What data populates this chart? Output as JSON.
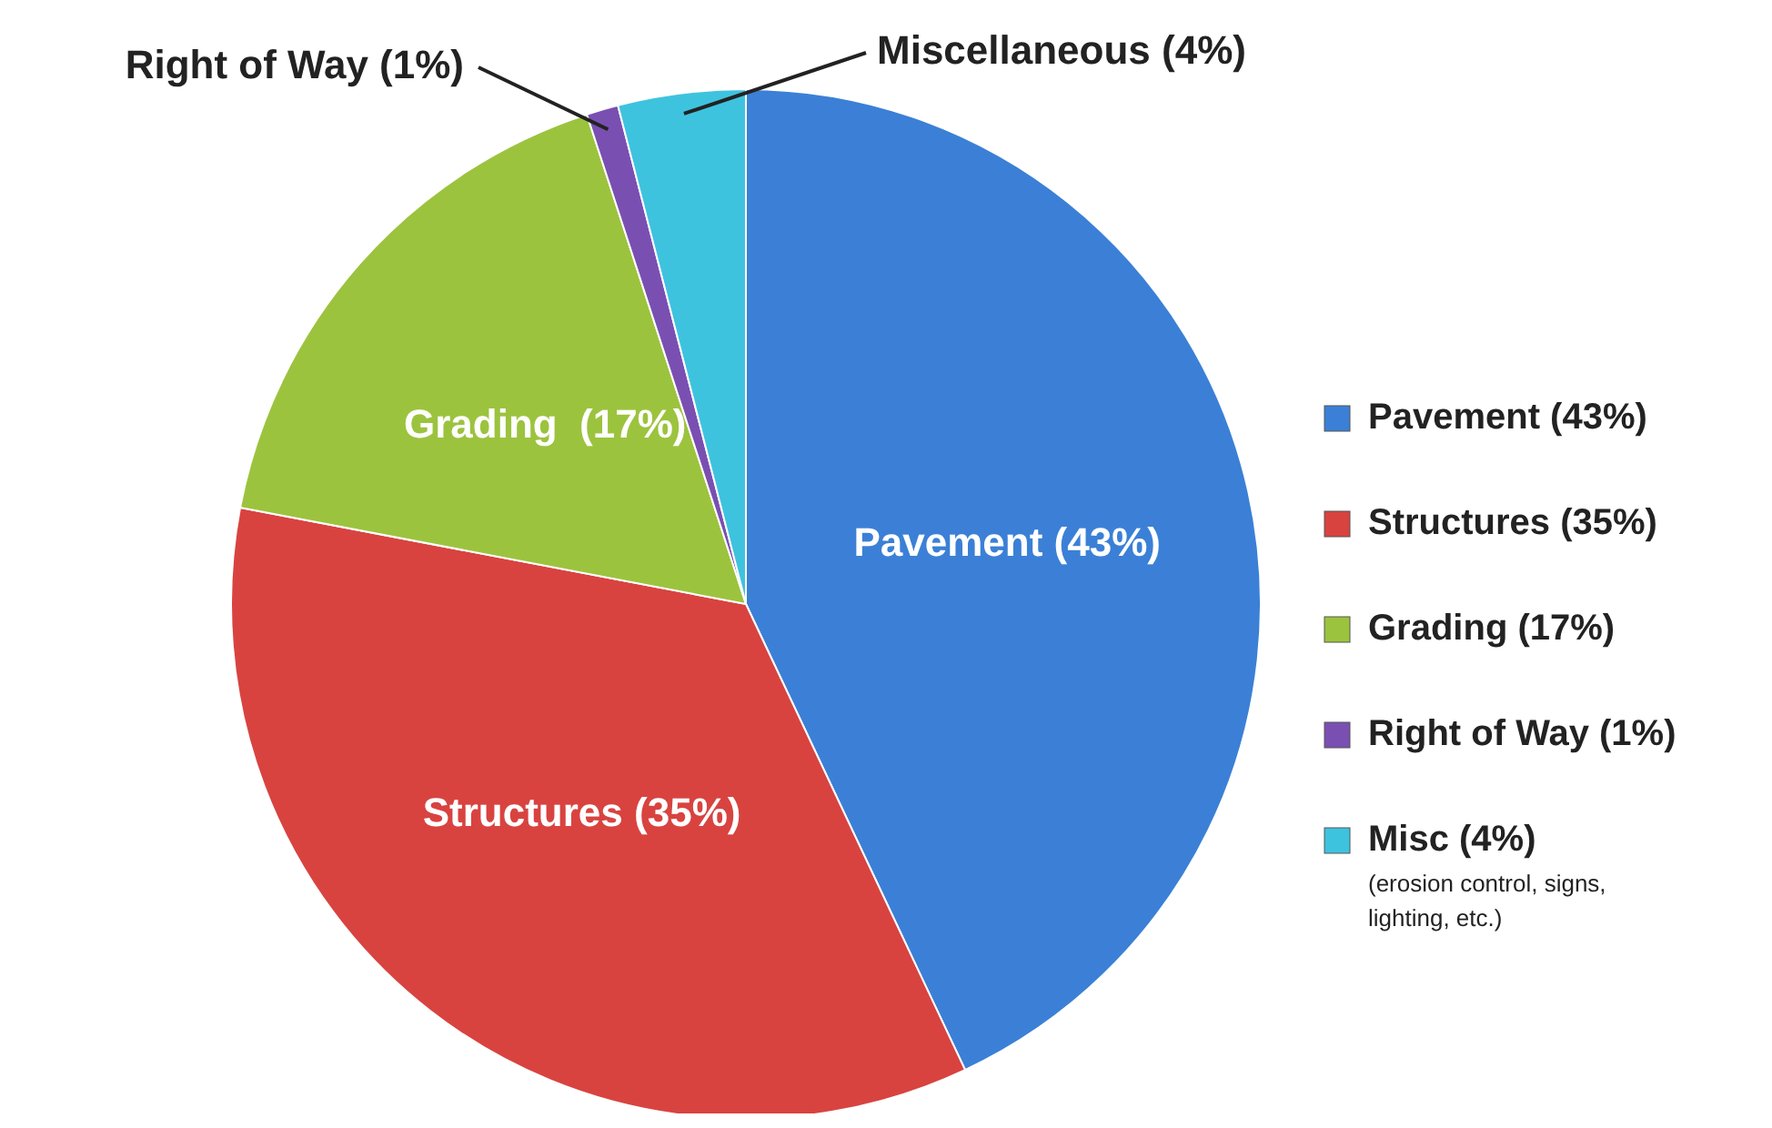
{
  "chart_data": {
    "type": "pie",
    "categories": [
      "Pavement (43%)",
      "Structures (35%)",
      "Grading (17%)",
      "Right of Way (1%)",
      "Misc (4%)"
    ],
    "values": [
      43,
      35,
      17,
      1,
      4
    ],
    "colors": [
      "#3b80d6",
      "#d84340",
      "#9cc33e",
      "#7a4fb2",
      "#3ec3df"
    ],
    "value_labels": [
      "Pavement (43%)",
      "Structures (35%)",
      "Grading  (17%)",
      "Right of Way (1%)",
      "Miscellaneous (4%)"
    ],
    "annotations": [
      "(erosion control, signs, lighting, etc.)"
    ],
    "legend": "right"
  }
}
